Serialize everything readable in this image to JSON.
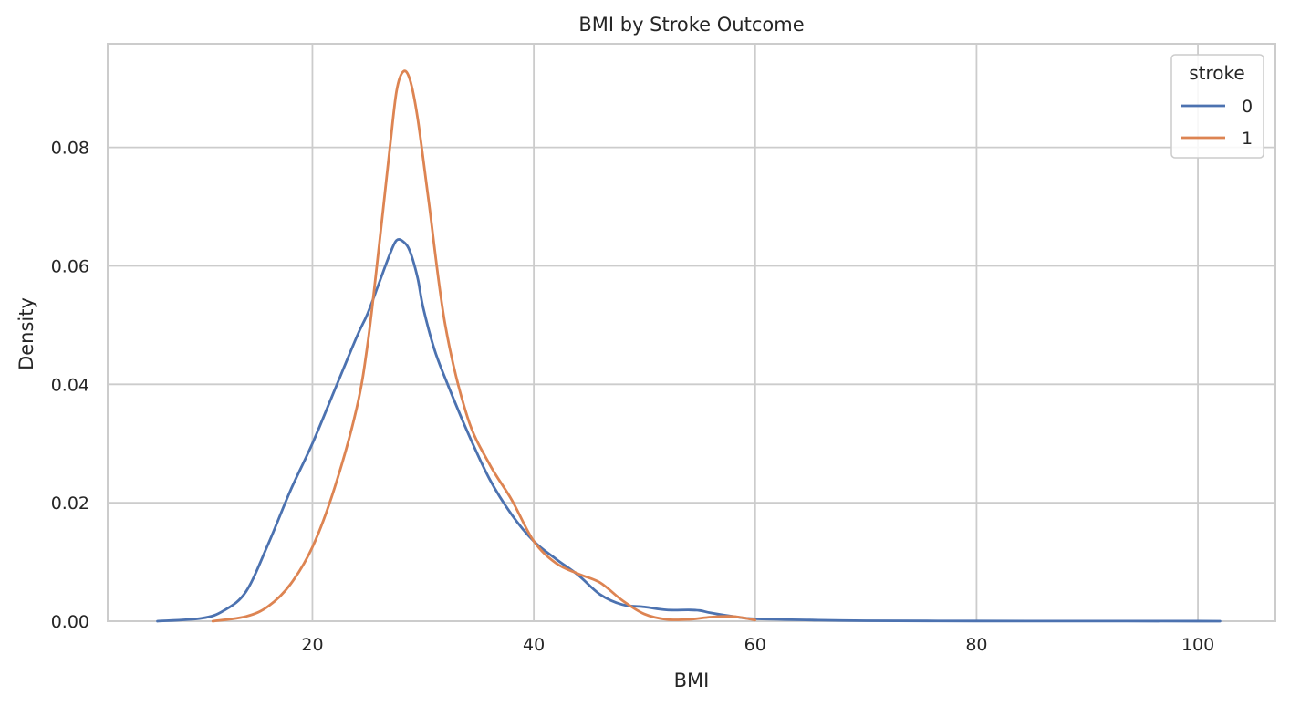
{
  "chart_data": {
    "type": "line",
    "title": "BMI by Stroke Outcome",
    "xlabel": "BMI",
    "ylabel": "Density",
    "xlim": [
      1.5,
      107
    ],
    "ylim": [
      0,
      0.0975
    ],
    "xticks": [
      20,
      40,
      60,
      80,
      100
    ],
    "xtick_labels": [
      "20",
      "40",
      "60",
      "80",
      "100"
    ],
    "yticks": [
      0,
      0.02,
      0.04,
      0.06,
      0.08
    ],
    "ytick_labels": [
      "0.00",
      "0.02",
      "0.04",
      "0.06",
      "0.08"
    ],
    "grid": true,
    "legend": {
      "title": "stroke",
      "position": "top-right"
    },
    "series": [
      {
        "name": "0",
        "color": "#4c72b0",
        "x": [
          6,
          10,
          12,
          14,
          16,
          18,
          20,
          22,
          24,
          25,
          26,
          27,
          27.6,
          28.2,
          28.8,
          29.5,
          30,
          31,
          32,
          34,
          36,
          38,
          40,
          42,
          44,
          46,
          48,
          50,
          52,
          54,
          55,
          56,
          58,
          60,
          65,
          70,
          80,
          90,
          100,
          102
        ],
        "y": [
          0.0,
          0.0005,
          0.0018,
          0.005,
          0.013,
          0.022,
          0.03,
          0.039,
          0.048,
          0.052,
          0.057,
          0.062,
          0.0643,
          0.0641,
          0.0625,
          0.058,
          0.053,
          0.046,
          0.041,
          0.032,
          0.024,
          0.018,
          0.0135,
          0.0105,
          0.0078,
          0.0045,
          0.0028,
          0.0024,
          0.0019,
          0.0019,
          0.0018,
          0.0014,
          0.0008,
          0.0004,
          0.0002,
          8e-05,
          3e-05,
          2e-05,
          1e-05,
          0.0
        ]
      },
      {
        "name": "1",
        "color": "#dd8452",
        "x": [
          11,
          14,
          16,
          18,
          20,
          22,
          24,
          25,
          26,
          27,
          27.6,
          28.2,
          28.8,
          29.5,
          30.5,
          32,
          34,
          36,
          38,
          40,
          42,
          44,
          46,
          48,
          50,
          52,
          54,
          56,
          58,
          60
        ],
        "y": [
          0.0,
          0.0008,
          0.0025,
          0.0062,
          0.0125,
          0.0225,
          0.036,
          0.047,
          0.063,
          0.08,
          0.0895,
          0.0928,
          0.0915,
          0.085,
          0.071,
          0.05,
          0.0345,
          0.0265,
          0.0205,
          0.0135,
          0.0098,
          0.008,
          0.0065,
          0.0035,
          0.0012,
          0.0003,
          0.0003,
          0.0007,
          0.0008,
          0.0002
        ]
      }
    ]
  }
}
